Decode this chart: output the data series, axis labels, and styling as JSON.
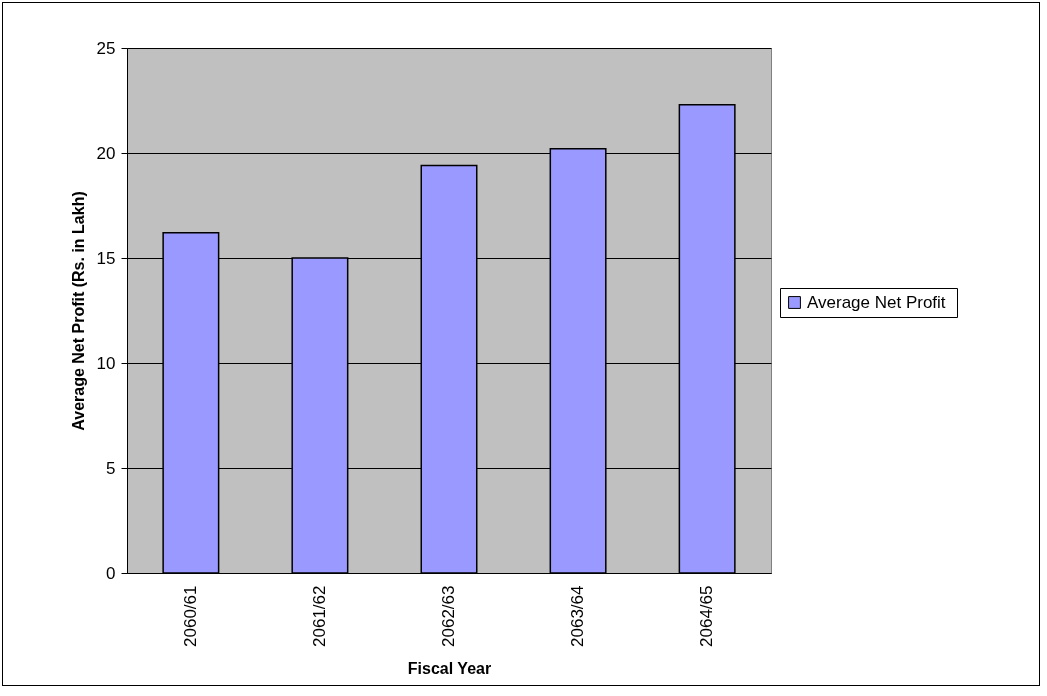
{
  "chart_data": {
    "type": "bar",
    "xlabel": "Fiscal Year",
    "ylabel": "Average Net Profit (Rs. in Lakh)",
    "categories": [
      "2060/61",
      "2061/62",
      "2062/63",
      "2063/64",
      "2064/65"
    ],
    "series": [
      {
        "name": "Average  Net Profit",
        "color": "#9999ff",
        "values": [
          16.2,
          15.0,
          19.4,
          20.2,
          22.3
        ]
      }
    ],
    "ylim": [
      0,
      25
    ],
    "yticks": [
      0,
      5,
      10,
      15,
      20,
      25
    ],
    "grid": "y",
    "legend": "right"
  }
}
